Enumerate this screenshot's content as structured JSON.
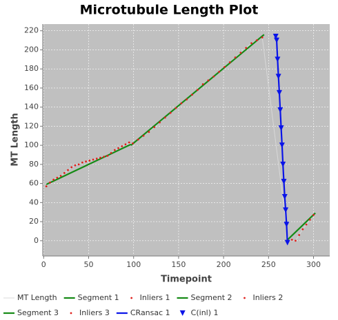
{
  "chart_data": {
    "type": "line",
    "title": "Microtubule Length Plot",
    "x_label": "Timepoint",
    "y_label": "MT Length",
    "xlim": [
      -1,
      318
    ],
    "ylim": [
      -16,
      227
    ],
    "xticks": [
      0,
      50,
      100,
      150,
      200,
      250,
      300
    ],
    "yticks": [
      0,
      20,
      40,
      60,
      80,
      100,
      120,
      140,
      160,
      180,
      200,
      220
    ],
    "grid": true,
    "background": "#c0c0c0",
    "series": [
      {
        "name": "MT Length",
        "color": "#d8d8d8",
        "style": "line",
        "x": [
          3,
          11,
          19,
          27,
          35,
          43,
          51,
          59,
          67,
          75,
          83,
          91,
          99,
          111,
          123,
          135,
          147,
          159,
          171,
          183,
          195,
          207,
          219,
          231,
          243,
          272,
          280,
          288,
          296,
          300
        ],
        "values": [
          57,
          64,
          68,
          74,
          79,
          82,
          84,
          86,
          88,
          92,
          97,
          101,
          102,
          110,
          119,
          129,
          139,
          148,
          158,
          168,
          177,
          187,
          197,
          207,
          213,
          0,
          0,
          12,
          22,
          27
        ]
      },
      {
        "name": "Segment 1",
        "color": "#158a15",
        "style": "line",
        "x": [
          3,
          97
        ],
        "values": [
          59,
          101
        ]
      },
      {
        "name": "Inliers 1",
        "color": "#e0201c",
        "style": "dots",
        "x": [
          3,
          7,
          11,
          15,
          19,
          23,
          27,
          31,
          35,
          39,
          43,
          47,
          51,
          55,
          59,
          63,
          67,
          71,
          75,
          79,
          83,
          87,
          91,
          95
        ],
        "values": [
          57,
          61,
          64,
          66,
          68,
          71,
          74,
          77,
          79,
          80,
          82,
          83,
          84,
          85,
          86,
          87,
          88,
          89,
          92,
          95,
          97,
          99,
          101,
          103
        ]
      },
      {
        "name": "Segment 2",
        "color": "#158a15",
        "style": "line",
        "x": [
          97,
          245
        ],
        "values": [
          100,
          216
        ]
      },
      {
        "name": "Inliers 2",
        "color": "#e0201c",
        "style": "dots",
        "x": [
          99,
          105,
          111,
          117,
          123,
          129,
          135,
          141,
          147,
          153,
          159,
          165,
          171,
          177,
          183,
          189,
          195,
          201,
          207,
          213,
          219,
          225,
          231,
          237,
          243
        ],
        "values": [
          102,
          106,
          110,
          114,
          119,
          124,
          129,
          134,
          139,
          144,
          148,
          153,
          158,
          164,
          168,
          172,
          177,
          182,
          187,
          192,
          197,
          202,
          207,
          210,
          213
        ]
      },
      {
        "name": "Segment 3",
        "color": "#158a15",
        "style": "line",
        "x": [
          270,
          302
        ],
        "values": [
          0,
          29
        ]
      },
      {
        "name": "Inliers 3",
        "color": "#e0201c",
        "style": "dots",
        "x": [
          272,
          276,
          280,
          284,
          288,
          292,
          296,
          300
        ],
        "values": [
          0,
          1,
          0,
          6,
          12,
          17,
          22,
          27
        ]
      },
      {
        "name": "CRansac 1",
        "color": "#0a14e8",
        "style": "line",
        "x": [
          258,
          259,
          260,
          261,
          262,
          263,
          264,
          265,
          266,
          267,
          268,
          269,
          270,
          271
        ],
        "values": [
          214,
          210,
          190,
          172,
          155,
          137,
          118,
          100,
          80,
          62,
          46,
          32,
          17,
          -2
        ]
      },
      {
        "name": "C(inl) 1",
        "color": "#0a14e8",
        "style": "triangles",
        "x": [
          258,
          259,
          260,
          261,
          262,
          263,
          264,
          265,
          266,
          267,
          268,
          269,
          270,
          271
        ],
        "values": [
          214,
          210,
          190,
          172,
          155,
          137,
          118,
          100,
          80,
          62,
          46,
          32,
          17,
          -2
        ]
      }
    ]
  }
}
